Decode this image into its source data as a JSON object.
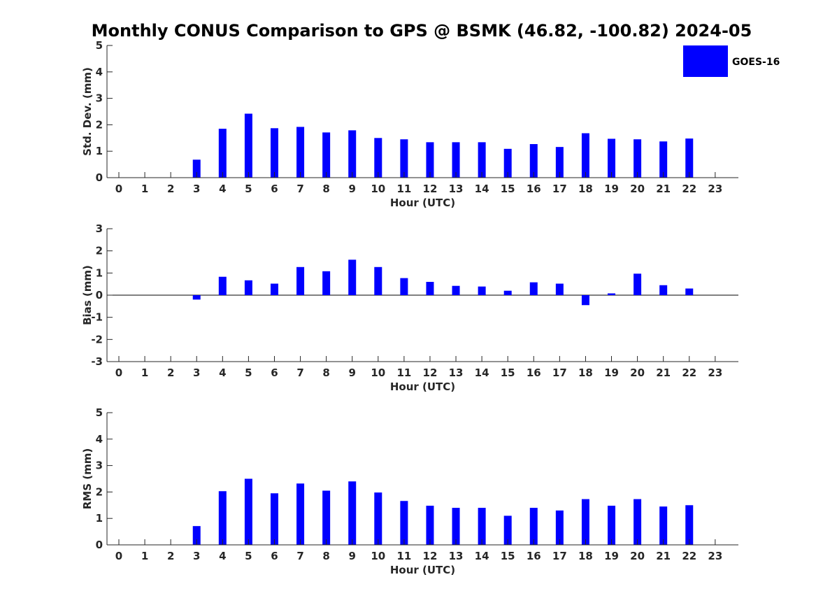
{
  "title": "Monthly CONUS Comparison to GPS @ BSMK (46.82, -100.82) 2024-05",
  "bar_color": "#0000ff",
  "legend": {
    "label": "GOES-16",
    "placement": "top-right"
  },
  "chart_data": [
    {
      "type": "bar",
      "name": "std",
      "ylabel": "Std. Dev. (mm)",
      "xlabel": "Hour (UTC)",
      "categories": [
        "0",
        "1",
        "2",
        "3",
        "4",
        "5",
        "6",
        "7",
        "8",
        "9",
        "10",
        "11",
        "12",
        "13",
        "14",
        "15",
        "16",
        "17",
        "18",
        "19",
        "20",
        "21",
        "22",
        "23"
      ],
      "yticks": [
        "0",
        "1",
        "2",
        "3",
        "4",
        "5"
      ],
      "ylim": [
        0,
        5
      ],
      "values": [
        null,
        null,
        null,
        0.68,
        1.85,
        2.42,
        1.87,
        1.92,
        1.71,
        1.79,
        1.5,
        1.45,
        1.34,
        1.34,
        1.34,
        1.09,
        1.27,
        1.16,
        1.68,
        1.47,
        1.45,
        1.37,
        1.48,
        null
      ],
      "series_name": "GOES-16"
    },
    {
      "type": "bar",
      "name": "bias",
      "ylabel": "Bias (mm)",
      "xlabel": "Hour (UTC)",
      "categories": [
        "0",
        "1",
        "2",
        "3",
        "4",
        "5",
        "6",
        "7",
        "8",
        "9",
        "10",
        "11",
        "12",
        "13",
        "14",
        "15",
        "16",
        "17",
        "18",
        "19",
        "20",
        "21",
        "22",
        "23"
      ],
      "yticks": [
        "-3",
        "-2",
        "-1",
        "0",
        "1",
        "2",
        "3"
      ],
      "ylim": [
        -3,
        3
      ],
      "values": [
        null,
        null,
        null,
        -0.2,
        0.83,
        0.67,
        0.52,
        1.27,
        1.08,
        1.6,
        1.27,
        0.77,
        0.6,
        0.42,
        0.39,
        0.2,
        0.58,
        0.52,
        -0.45,
        0.08,
        0.97,
        0.45,
        0.3,
        null
      ],
      "series_name": "GOES-16"
    },
    {
      "type": "bar",
      "name": "rms",
      "ylabel": "RMS (mm)",
      "xlabel": "Hour (UTC)",
      "categories": [
        "0",
        "1",
        "2",
        "3",
        "4",
        "5",
        "6",
        "7",
        "8",
        "9",
        "10",
        "11",
        "12",
        "13",
        "14",
        "15",
        "16",
        "17",
        "18",
        "19",
        "20",
        "21",
        "22",
        "23"
      ],
      "yticks": [
        "0",
        "1",
        "2",
        "3",
        "4",
        "5"
      ],
      "ylim": [
        0,
        5
      ],
      "values": [
        null,
        null,
        null,
        0.71,
        2.03,
        2.5,
        1.95,
        2.32,
        2.05,
        2.4,
        1.98,
        1.66,
        1.48,
        1.4,
        1.4,
        1.1,
        1.4,
        1.3,
        1.73,
        1.48,
        1.73,
        1.45,
        1.5,
        null
      ],
      "series_name": "GOES-16"
    }
  ]
}
